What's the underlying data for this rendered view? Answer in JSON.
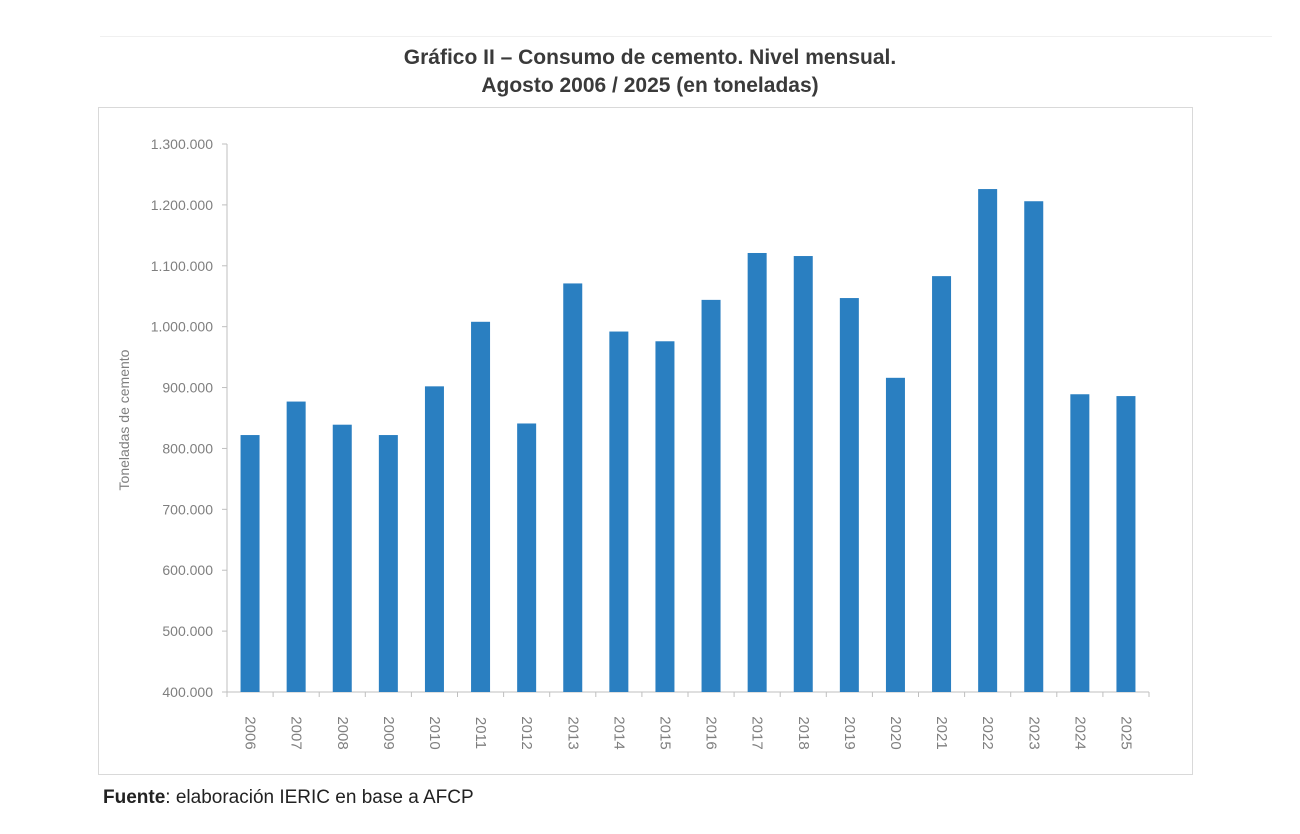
{
  "title_line1": "Gráfico II – Consumo de cemento. Nivel mensual.",
  "title_line2": "Agosto 2006 / 2025 (en toneladas)",
  "source_label": "Fuente",
  "source_text": ": elaboración IERIC en base a AFCP",
  "colors": {
    "bar": "#2a7fc1",
    "axis": "#bfbfbf",
    "tick_text": "#7f7f7f"
  },
  "chart_data": {
    "type": "bar",
    "title": "Gráfico II – Consumo de cemento. Nivel mensual. Agosto 2006 / 2025 (en toneladas)",
    "xlabel": "",
    "ylabel": "Toneladas de cemento",
    "ylim": [
      400000,
      1300000
    ],
    "yticks": [
      400000,
      500000,
      600000,
      700000,
      800000,
      900000,
      1000000,
      1100000,
      1200000,
      1300000
    ],
    "ytick_labels": [
      "400.000",
      "500.000",
      "600.000",
      "700.000",
      "800.000",
      "900.000",
      "1.000.000",
      "1.100.000",
      "1.200.000",
      "1.300.000"
    ],
    "grid": false,
    "categories": [
      "2006",
      "2007",
      "2008",
      "2009",
      "2010",
      "2011",
      "2012",
      "2013",
      "2014",
      "2015",
      "2016",
      "2017",
      "2018",
      "2019",
      "2020",
      "2021",
      "2022",
      "2023",
      "2024",
      "2025"
    ],
    "values": [
      822000,
      877000,
      839000,
      822000,
      902000,
      1008000,
      841000,
      1071000,
      992000,
      976000,
      1044000,
      1121000,
      1116000,
      1047000,
      916000,
      1083000,
      1226000,
      1206000,
      889000,
      886000
    ]
  }
}
